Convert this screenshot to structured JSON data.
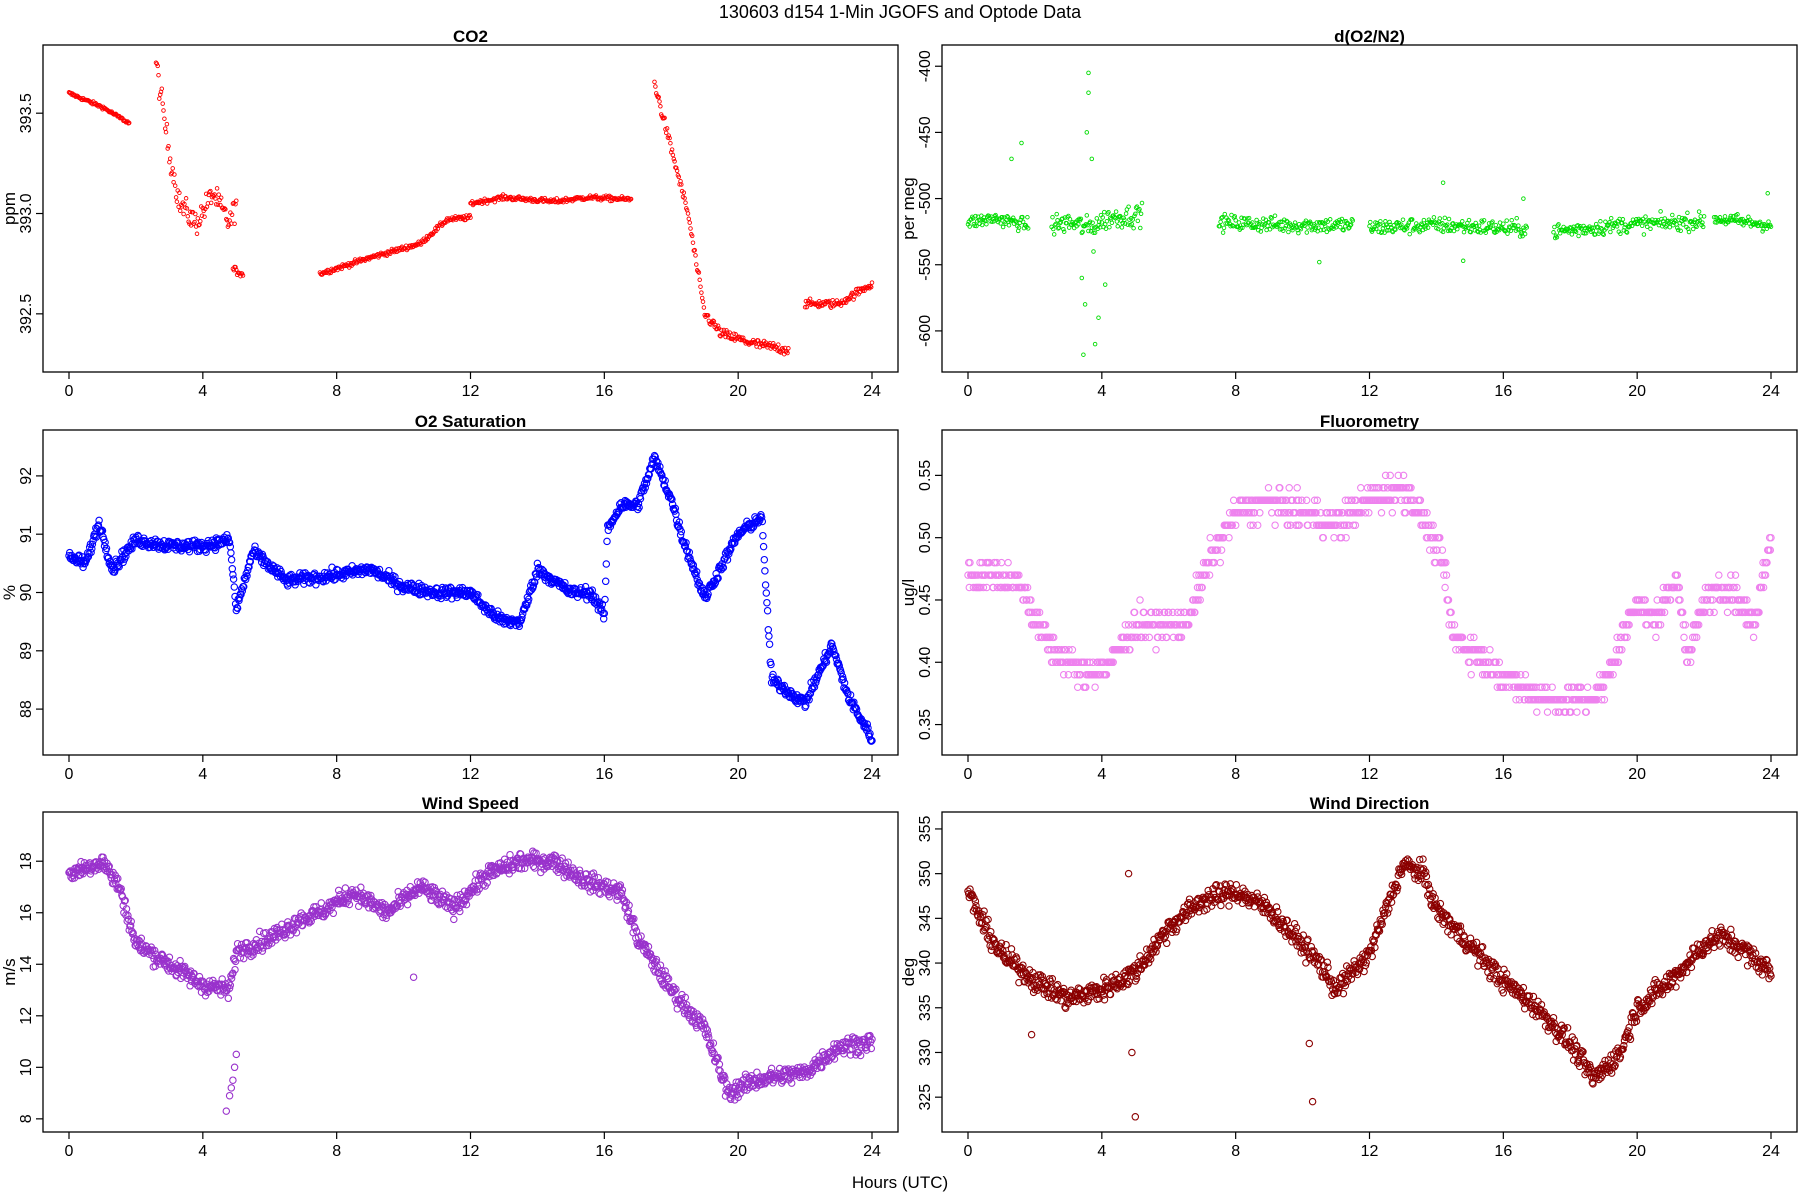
{
  "figure": {
    "title": "130603   d154   1-Min  JGOFS and Optode Data",
    "xlabel": "Hours (UTC)"
  },
  "chart_data": [
    {
      "id": "co2",
      "type": "scatter",
      "title": "CO2",
      "ylabel": "ppm",
      "color": "#ff0000",
      "marker": "small-circle",
      "xlim": [
        0,
        24
      ],
      "ylim": [
        392.25,
        393.8
      ],
      "x_ticks": [
        "0",
        "4",
        "8",
        "12",
        "16",
        "20",
        "24"
      ],
      "y_ticks": [
        "392.5",
        "393.0",
        "393.5"
      ],
      "y_tick_values": [
        392.5,
        393.0,
        393.5
      ],
      "y_tick_rotation": "vertical",
      "segments": [
        {
          "t": [
            0.0,
            1.0,
            1.8
          ],
          "y": [
            393.6,
            393.53,
            393.45
          ],
          "noise": 0.008
        },
        {
          "t": [
            2.6,
            3.0,
            3.3,
            3.8,
            4.3,
            4.8,
            5.0
          ],
          "y": [
            393.75,
            393.3,
            393.05,
            392.95,
            393.1,
            392.95,
            393.05
          ],
          "noise": 0.06
        },
        {
          "t": [
            4.9,
            5.2
          ],
          "y": [
            392.72,
            392.7
          ],
          "noise": 0.02
        },
        {
          "t": [
            7.5,
            9,
            10.5,
            11.3,
            12.0
          ],
          "y": [
            392.7,
            392.78,
            392.85,
            392.97,
            392.98
          ],
          "noise": 0.012
        },
        {
          "t": [
            12.0,
            13.0,
            14.5,
            15.5,
            16.8
          ],
          "y": [
            393.05,
            393.08,
            393.06,
            393.08,
            393.07
          ],
          "noise": 0.012
        },
        {
          "t": [
            17.5,
            17.8,
            18.5,
            19.0,
            19.5,
            20.5,
            21.5
          ],
          "y": [
            393.65,
            393.45,
            393.0,
            392.5,
            392.4,
            392.35,
            392.32
          ],
          "noise": 0.025
        },
        {
          "t": [
            22.0,
            23.0,
            24.0
          ],
          "y": [
            392.55,
            392.55,
            392.65
          ],
          "noise": 0.02
        }
      ]
    },
    {
      "id": "do2n2",
      "type": "scatter",
      "title": "d(O2/N2)",
      "ylabel": "per meg",
      "color": "#00dd00",
      "marker": "small-circle",
      "xlim": [
        0,
        24
      ],
      "ylim": [
        -625,
        -390
      ],
      "x_ticks": [
        "0",
        "4",
        "8",
        "12",
        "16",
        "20",
        "24"
      ],
      "y_ticks": [
        "-600",
        "-550",
        "-500",
        "-450",
        "-400"
      ],
      "y_tick_values": [
        -600,
        -550,
        -500,
        -450,
        -400
      ],
      "y_tick_rotation": "vertical",
      "segments": [
        {
          "t": [
            0.0,
            0.8,
            1.8
          ],
          "y": [
            -518,
            -515,
            -520
          ],
          "noise": 5
        },
        {
          "t": [
            2.5,
            3.0,
            3.6,
            4.2,
            5.2
          ],
          "y": [
            -520,
            -518,
            -522,
            -515,
            -512
          ],
          "noise": 8
        },
        {
          "t": [
            7.5,
            9.5,
            11.5
          ],
          "y": [
            -518,
            -520,
            -520
          ],
          "noise": 6
        },
        {
          "t": [
            12.0,
            14.0,
            16.7
          ],
          "y": [
            -522,
            -520,
            -523
          ],
          "noise": 6
        },
        {
          "t": [
            17.5,
            19.5,
            22.0
          ],
          "y": [
            -525,
            -520,
            -517
          ],
          "noise": 6
        },
        {
          "t": [
            22.3,
            24.0
          ],
          "y": [
            -515,
            -520
          ],
          "noise": 5
        }
      ],
      "outliers": [
        [
          1.3,
          -470
        ],
        [
          1.6,
          -458
        ],
        [
          3.6,
          -405
        ],
        [
          3.6,
          -420
        ],
        [
          3.55,
          -450
        ],
        [
          3.7,
          -470
        ],
        [
          3.5,
          -580
        ],
        [
          3.8,
          -610
        ],
        [
          3.4,
          -560
        ],
        [
          3.9,
          -590
        ],
        [
          3.45,
          -618
        ],
        [
          3.75,
          -540
        ],
        [
          4.1,
          -565
        ],
        [
          10.5,
          -548
        ],
        [
          14.2,
          -488
        ],
        [
          14.8,
          -547
        ],
        [
          16.6,
          -500
        ],
        [
          23.9,
          -496
        ]
      ]
    },
    {
      "id": "o2sat",
      "type": "scatter",
      "title": "O2 Saturation",
      "ylabel": "%",
      "color": "#0000ff",
      "marker": "circle",
      "xlim": [
        0,
        24
      ],
      "ylim": [
        87.35,
        92.65
      ],
      "x_ticks": [
        "0",
        "4",
        "8",
        "12",
        "16",
        "20",
        "24"
      ],
      "y_ticks": [
        "88",
        "89",
        "90",
        "91",
        "92"
      ],
      "y_tick_values": [
        88,
        89,
        90,
        91,
        92
      ],
      "y_tick_rotation": "vertical",
      "segments": [
        {
          "t": [
            0,
            0.5,
            0.9,
            1.3,
            2,
            3,
            4,
            4.8,
            5.0,
            5.5,
            6.5,
            8,
            9,
            10,
            11,
            12,
            12.5,
            13.0,
            13.5,
            14,
            15,
            15.6,
            16.0,
            16.1,
            16.5,
            17.0,
            17.5,
            18.0,
            18.3,
            19.0,
            20.0,
            20.7,
            21.0,
            22.0,
            22.8,
            23.3,
            24.0
          ],
          "y": [
            90.6,
            90.5,
            91.2,
            90.4,
            90.9,
            90.8,
            90.8,
            90.9,
            89.7,
            90.7,
            90.2,
            90.3,
            90.4,
            90.1,
            90.0,
            90.0,
            89.7,
            89.5,
            89.5,
            90.4,
            90.0,
            90.0,
            89.6,
            91.1,
            91.5,
            91.5,
            92.3,
            91.6,
            91.0,
            89.9,
            91.0,
            91.3,
            88.5,
            88.1,
            89.1,
            88.2,
            87.5
          ],
          "noise": 0.1
        }
      ]
    },
    {
      "id": "fluor",
      "type": "scatter",
      "title": "Fluorometry",
      "ylabel": "ug/l",
      "color": "#ee82ee",
      "marker": "circle",
      "quantize": 0.01,
      "xlim": [
        0,
        24
      ],
      "ylim": [
        0.332,
        0.58
      ],
      "x_ticks": [
        "0",
        "4",
        "8",
        "12",
        "16",
        "20",
        "24"
      ],
      "y_ticks": [
        "0.35",
        "0.40",
        "0.45",
        "0.50",
        "0.55"
      ],
      "y_tick_values": [
        0.35,
        0.4,
        0.45,
        0.5,
        0.55
      ],
      "y_tick_rotation": "vertical",
      "segments": [
        {
          "t": [
            0,
            1,
            1.6,
            2.5,
            3.5,
            4.3,
            5.0,
            6.5,
            7.2,
            8.0,
            9.0,
            10.0,
            11.0,
            12.0,
            13.0,
            13.5,
            14.2,
            14.5,
            15.5,
            16.5,
            17.5,
            18.5,
            19.0,
            20.0,
            20.5,
            21.2,
            21.5,
            22.0,
            22.8,
            23.5,
            24.0
          ],
          "y": [
            0.47,
            0.47,
            0.46,
            0.41,
            0.39,
            0.4,
            0.43,
            0.43,
            0.48,
            0.52,
            0.53,
            0.52,
            0.51,
            0.53,
            0.54,
            0.52,
            0.48,
            0.42,
            0.4,
            0.38,
            0.37,
            0.37,
            0.38,
            0.45,
            0.43,
            0.47,
            0.4,
            0.45,
            0.46,
            0.43,
            0.5
          ],
          "noise": 0.012
        }
      ]
    },
    {
      "id": "wspd",
      "type": "scatter",
      "title": "Wind Speed",
      "ylabel": "m/s",
      "color": "#9932cc",
      "marker": "circle",
      "xlim": [
        0,
        24
      ],
      "ylim": [
        7.8,
        19.6
      ],
      "x_ticks": [
        "0",
        "4",
        "8",
        "12",
        "16",
        "20",
        "24"
      ],
      "y_ticks": [
        "8",
        "10",
        "12",
        "14",
        "16",
        "18"
      ],
      "y_tick_values": [
        8,
        10,
        12,
        14,
        16,
        18
      ],
      "y_tick_rotation": "vertical",
      "segments": [
        {
          "t": [
            0,
            1,
            1.5,
            2.0,
            3.0,
            4.0,
            4.8,
            5.0,
            6.0,
            7.0,
            7.5,
            8.5,
            9.5,
            10.5,
            11.5,
            12.5,
            13.5,
            14.5,
            15.5,
            16.5,
            17.0,
            18.0,
            19.0,
            19.7,
            20.5,
            22.0,
            23.0,
            24.0
          ],
          "y": [
            17.5,
            18.0,
            17.0,
            14.8,
            14.0,
            13.2,
            13.0,
            14.5,
            15.0,
            15.8,
            16.0,
            16.8,
            16.0,
            17.0,
            16.2,
            17.5,
            18.0,
            18.0,
            17.2,
            16.8,
            15.0,
            13.0,
            11.5,
            9.0,
            9.5,
            9.8,
            10.8,
            11.0
          ],
          "noise": 0.35
        }
      ],
      "outliers": [
        [
          4.7,
          8.3
        ],
        [
          4.8,
          8.9
        ],
        [
          4.9,
          9.5
        ],
        [
          4.95,
          10.0
        ],
        [
          5.0,
          10.5
        ],
        [
          4.85,
          9.2
        ],
        [
          10.3,
          13.5
        ]
      ]
    },
    {
      "id": "wdir",
      "type": "scatter",
      "title": "Wind Direction",
      "ylabel": "deg",
      "color": "#8b0000",
      "marker": "circle",
      "xlim": [
        0,
        24
      ],
      "ylim": [
        322,
        356
      ],
      "x_ticks": [
        "0",
        "4",
        "8",
        "12",
        "16",
        "20",
        "24"
      ],
      "y_ticks": [
        "325",
        "330",
        "335",
        "340",
        "345",
        "350",
        "355"
      ],
      "y_tick_values": [
        325,
        330,
        335,
        340,
        345,
        350,
        355
      ],
      "y_tick_rotation": "vertical",
      "segments": [
        {
          "t": [
            0,
            0.5,
            1.0,
            2.0,
            3.0,
            4.0,
            5.0,
            6.0,
            7.0,
            8.0,
            9.0,
            10.0,
            10.5,
            11.0,
            12.0,
            13.0,
            13.6,
            14.0,
            15.0,
            16.0,
            17.0,
            18.0,
            18.7,
            19.5,
            20.0,
            21.0,
            22.0,
            22.5,
            23.0,
            24.0
          ],
          "y": [
            348,
            344,
            341,
            338,
            336,
            337,
            339,
            344,
            347,
            348,
            346,
            342,
            340,
            337,
            341,
            351,
            350,
            346,
            342,
            338,
            335,
            331,
            327,
            330,
            335,
            338,
            342,
            343,
            342,
            339
          ],
          "noise": 1.2
        }
      ],
      "outliers": [
        [
          4.8,
          350
        ],
        [
          4.9,
          330
        ],
        [
          5.0,
          322.8
        ],
        [
          10.3,
          324.5
        ],
        [
          10.2,
          331
        ],
        [
          1.9,
          332
        ]
      ]
    }
  ]
}
